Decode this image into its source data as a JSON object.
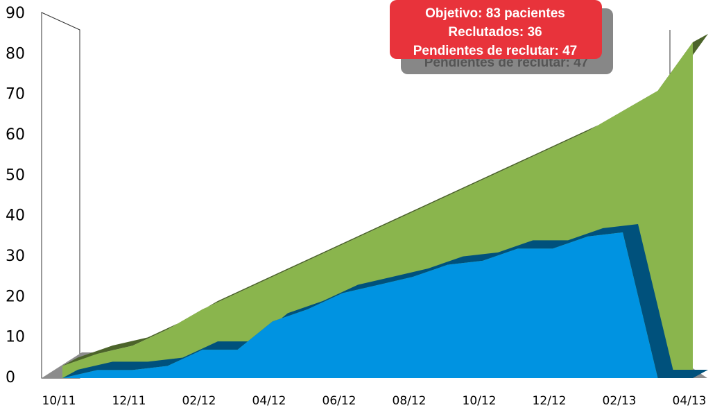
{
  "chart_data": {
    "type": "area3d",
    "categories": [
      "10/11",
      null,
      "12/11",
      null,
      "02/12",
      null,
      "04/12",
      null,
      "06/12",
      null,
      "08/12",
      null,
      "10/12",
      null,
      "12/12",
      null,
      "02/13",
      null,
      "04/13"
    ],
    "series": [
      {
        "name": "Objetivo",
        "color": "#8ab54d",
        "values": [
          3,
          6,
          8,
          12,
          17,
          21,
          25,
          29,
          33,
          37,
          41,
          45,
          49,
          53,
          57,
          61,
          66,
          71,
          83
        ]
      },
      {
        "name": "Reclutados",
        "color": "#0093e1",
        "values": [
          0,
          2,
          2,
          3,
          7,
          7,
          14,
          17,
          21,
          23,
          25,
          28,
          29,
          32,
          32,
          35,
          36,
          0,
          0
        ]
      }
    ],
    "ylim": [
      0,
      90
    ],
    "yticks": [
      0,
      10,
      20,
      30,
      40,
      50,
      60,
      70,
      80,
      90
    ],
    "tooltip": [
      "Objetivo: 83 pacientes",
      "Reclutados: 36",
      "Pendientes de reclutar: 47"
    ]
  }
}
